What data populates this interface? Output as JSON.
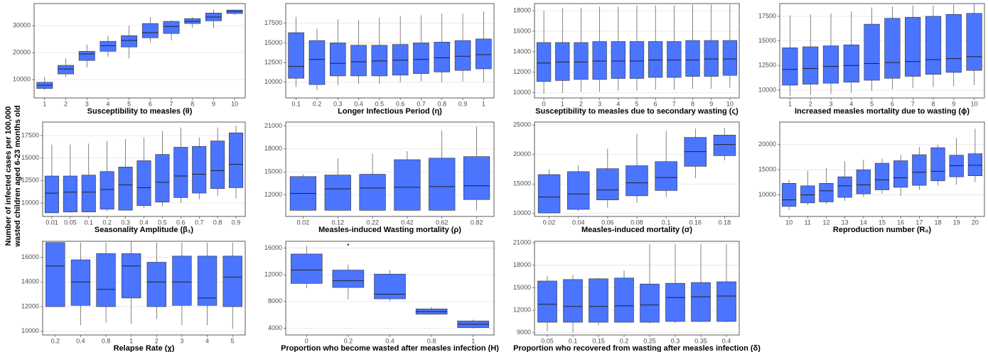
{
  "ylabel": [
    "Number of infected cases per 100,000",
    "wasted children aged 6-23 months old"
  ],
  "chart_data": [
    {
      "type": "box",
      "xlabel": "Susceptibility to measles (θ)",
      "color": "#4b74ff",
      "grid": true,
      "categories": [
        "1",
        "2",
        "3",
        "4",
        "5",
        "6",
        "7",
        "8",
        "9",
        "10"
      ],
      "whislo": [
        6000,
        11000,
        14500,
        18400,
        17900,
        23700,
        24500,
        29200,
        29000,
        34000
      ],
      "q1": [
        6700,
        12100,
        17100,
        20500,
        22100,
        25500,
        27100,
        30800,
        31800,
        34500
      ],
      "median": [
        7900,
        13950,
        19500,
        22600,
        24500,
        27400,
        29700,
        31600,
        33200,
        35300
      ],
      "q3": [
        9000,
        15300,
        20500,
        24200,
        26300,
        30800,
        31600,
        32600,
        34700,
        35800
      ],
      "whishi": [
        11000,
        17900,
        23000,
        26300,
        30000,
        33200,
        32000,
        33200,
        36000,
        36000
      ],
      "ylim": [
        3200,
        38200
      ],
      "yticks": [
        10000,
        20000,
        30000
      ]
    },
    {
      "type": "box",
      "xlabel": "Longer Infectious Period (η)",
      "color": "#4b74ff",
      "grid": true,
      "categories": [
        "0.1",
        "0.2",
        "0.3",
        "0.4",
        "0.5",
        "0.6",
        "0.7",
        "0.8",
        "0.9",
        "1"
      ],
      "whislo": [
        9400,
        9000,
        9600,
        9800,
        9800,
        10000,
        10100,
        10000,
        10100,
        10000
      ],
      "q1": [
        10500,
        9700,
        10800,
        10800,
        10800,
        10900,
        11100,
        11300,
        11500,
        11700
      ],
      "median": [
        12000,
        12900,
        12400,
        12600,
        12700,
        12800,
        12900,
        13100,
        13300,
        13500
      ],
      "q3": [
        16300,
        15300,
        15000,
        14700,
        14700,
        14800,
        15000,
        15100,
        15300,
        15500
      ],
      "whishi": [
        18300,
        16800,
        18000,
        17900,
        18200,
        18400,
        18500,
        18700,
        18700,
        19000
      ],
      "ylim": [
        8000,
        20000
      ],
      "yticks": [
        10000,
        12500,
        15000,
        17500
      ]
    },
    {
      "type": "box",
      "xlabel": "Susceptibility to measles due to secondary wasting (ς)",
      "color": "#4b74ff",
      "grid": true,
      "categories": [
        "0",
        "1",
        "2",
        "3",
        "4",
        "5",
        "6",
        "7",
        "8",
        "9",
        "10"
      ],
      "whislo": [
        9900,
        10000,
        10100,
        10100,
        10200,
        10200,
        10300,
        10300,
        10400,
        10400,
        10500
      ],
      "q1": [
        11100,
        11200,
        11300,
        11300,
        11400,
        11400,
        11500,
        11500,
        11600,
        11600,
        11700
      ],
      "median": [
        12900,
        13000,
        13000,
        13100,
        13100,
        13100,
        13200,
        13200,
        13200,
        13300,
        13300
      ],
      "q3": [
        14900,
        14900,
        14900,
        15000,
        15000,
        15000,
        15000,
        15000,
        15100,
        15100,
        15100
      ],
      "whishi": [
        18000,
        18300,
        18300,
        18400,
        18400,
        18500,
        18500,
        18500,
        18600,
        18600,
        18600
      ],
      "ylim": [
        9500,
        18700
      ],
      "yticks": [
        10000,
        12000,
        14000,
        16000,
        18000
      ]
    },
    {
      "type": "box",
      "xlabel": "Increased measles mortality due to wasting (ϕ)",
      "color": "#4b74ff",
      "grid": true,
      "categories": [
        "1",
        "2",
        "3",
        "4",
        "5",
        "6",
        "7",
        "8",
        "9",
        "10"
      ],
      "whislo": [
        9400,
        9500,
        9600,
        9700,
        9900,
        10100,
        10200,
        10300,
        10400,
        10500
      ],
      "q1": [
        10500,
        10600,
        10700,
        10800,
        11000,
        11200,
        11400,
        11600,
        11800,
        12000
      ],
      "median": [
        12100,
        12200,
        12400,
        12500,
        12700,
        12800,
        12900,
        13100,
        13200,
        13400
      ],
      "q3": [
        14300,
        14400,
        14500,
        14600,
        16700,
        17300,
        17400,
        17500,
        17700,
        17800
      ],
      "whishi": [
        17600,
        17700,
        17800,
        18000,
        18400,
        18500,
        18600,
        18600,
        18700,
        18800
      ],
      "ylim": [
        9200,
        18800
      ],
      "yticks": [
        10000,
        12500,
        15000,
        17500
      ]
    },
    {
      "type": "box",
      "xlabel": "Seasonality Amplitude (β₁)",
      "color": "#4b74ff",
      "grid": true,
      "categories": [
        "0.01",
        "0.05",
        "0.1",
        "0.2",
        "0.3",
        "0.4",
        "0.5",
        "0.6",
        "0.7",
        "0.8",
        "0.9"
      ],
      "whislo": [
        8900,
        8900,
        9000,
        9100,
        9200,
        9400,
        9600,
        10000,
        10400,
        10800,
        10500
      ],
      "q1": [
        8900,
        9000,
        9000,
        9300,
        9200,
        9700,
        10100,
        10600,
        11100,
        11600,
        11700
      ],
      "median": [
        11100,
        11200,
        11200,
        11500,
        12000,
        11700,
        12300,
        13000,
        13200,
        13600,
        14300
      ],
      "q3": [
        13000,
        13000,
        13100,
        13500,
        14000,
        14700,
        15400,
        16200,
        16300,
        16900,
        17800
      ],
      "whishi": [
        16500,
        16500,
        16600,
        16900,
        17100,
        17300,
        18000,
        18400,
        17300,
        18400,
        18600
      ],
      "ylim": [
        8500,
        19000
      ],
      "yticks": [
        10000,
        12500,
        15000,
        17500
      ]
    },
    {
      "type": "box",
      "xlabel": "Measles-induced Wasting mortality (ρ)",
      "color": "#4b74ff",
      "grid": true,
      "categories": [
        "0.02",
        "0.12",
        "0.22",
        "0.42",
        "0.62",
        "0.82"
      ],
      "whislo": [
        10000,
        10000,
        10000,
        10000,
        10000,
        10000
      ],
      "q1": [
        10000,
        10000,
        10000,
        10000,
        10000,
        11400
      ],
      "median": [
        12200,
        12800,
        12900,
        13000,
        13100,
        13200
      ],
      "q3": [
        14400,
        14600,
        14700,
        16600,
        16800,
        17000
      ],
      "whishi": [
        14700,
        16800,
        17400,
        17700,
        20400,
        20900
      ],
      "ylim": [
        9200,
        21500
      ],
      "yticks": [
        12000,
        15000,
        18000,
        21000
      ]
    },
    {
      "type": "box",
      "xlabel": "Measles-induced mortality (σ)",
      "color": "#4b74ff",
      "grid": true,
      "categories": [
        "0.02",
        "0.04",
        "0.06",
        "0.08",
        "0.1",
        "0.16",
        "0.18"
      ],
      "whislo": [
        10000,
        10400,
        11000,
        11800,
        12800,
        16000,
        19000
      ],
      "q1": [
        10100,
        10700,
        12300,
        13000,
        13900,
        18000,
        19800
      ],
      "median": [
        12800,
        13300,
        14000,
        15200,
        16100,
        20500,
        21700
      ],
      "q3": [
        16600,
        17100,
        17600,
        18100,
        18800,
        22900,
        23300
      ],
      "whishi": [
        17500,
        18200,
        21000,
        23500,
        24000,
        24400,
        24500
      ],
      "ylim": [
        9500,
        25500
      ],
      "yticks": [
        10000,
        15000,
        20000,
        25000
      ]
    },
    {
      "type": "box",
      "xlabel": "Reproduction number (R₀)",
      "color": "#4b74ff",
      "grid": true,
      "categories": [
        "10",
        "11",
        "12",
        "13",
        "14",
        "15",
        "16",
        "17",
        "18",
        "19",
        "20"
      ],
      "whislo": [
        7000,
        8000,
        8200,
        8800,
        9600,
        10200,
        9800,
        11000,
        11900,
        12000,
        12500
      ],
      "q1": [
        7700,
        8400,
        8600,
        9500,
        10200,
        11000,
        11500,
        11900,
        12800,
        13600,
        13800
      ],
      "median": [
        9000,
        10000,
        10800,
        11800,
        12000,
        13000,
        13400,
        14500,
        14700,
        15800,
        15900
      ],
      "q3": [
        12300,
        11800,
        12300,
        13600,
        15000,
        16300,
        16800,
        18000,
        19400,
        17900,
        18200
      ],
      "whishi": [
        13000,
        14800,
        15300,
        16700,
        17000,
        17200,
        18000,
        19500,
        20000,
        21300,
        23200
      ],
      "ylim": [
        5700,
        24500
      ],
      "yticks": [
        10000,
        15000,
        20000
      ]
    },
    {
      "type": "box",
      "xlabel": "Relapse Rate (χ)",
      "color": "#4b74ff",
      "grid": true,
      "categories": [
        "0.2",
        "0.4",
        "0.8",
        "1",
        "2",
        "3",
        "4",
        "5"
      ],
      "whislo": [
        12000,
        10500,
        10700,
        10600,
        11000,
        10500,
        10500,
        10200
      ],
      "q1": [
        12000,
        12100,
        12000,
        12700,
        12000,
        12100,
        12100,
        12000
      ],
      "median": [
        15300,
        14000,
        13400,
        15300,
        14000,
        14000,
        12700,
        14400
      ],
      "q3": [
        17200,
        15800,
        16300,
        16300,
        15600,
        16100,
        16100,
        16100
      ],
      "whishi": [
        17200,
        17200,
        17200,
        17300,
        17200,
        17200,
        17200,
        17200
      ],
      "ylim": [
        9700,
        17300
      ],
      "yticks": [
        10000,
        12000,
        14000,
        16000
      ]
    },
    {
      "type": "box",
      "xlabel": "Proportion who become wasted after measles infection (H)",
      "color": "#4b74ff",
      "grid": true,
      "categories": [
        "0",
        "0.2",
        "0.4",
        "0.8",
        "1"
      ],
      "whislo": [
        10000,
        8300,
        8000,
        6000,
        4000
      ],
      "q1": [
        10700,
        10100,
        8400,
        6100,
        4100
      ],
      "median": [
        12700,
        11100,
        9100,
        6500,
        4600
      ],
      "q3": [
        15100,
        12700,
        12100,
        6900,
        5100
      ],
      "whishi": [
        16300,
        13500,
        12700,
        7200,
        5300
      ],
      "outliers": [
        [],
        [
          16500
        ],
        [],
        [],
        []
      ],
      "ylim": [
        3000,
        17000
      ],
      "yticks": [
        4000,
        8000,
        12000,
        16000
      ]
    },
    {
      "type": "box",
      "xlabel": "Proportion who recovered from wasting after measles infection (δ)",
      "color": "#4b74ff",
      "grid": true,
      "categories": [
        "0.05",
        "0.1",
        "0.15",
        "0.2",
        "0.25",
        "0.3",
        "0.35",
        "0.4"
      ],
      "whislo": [
        9200,
        9000,
        10000,
        10300,
        10200,
        10300,
        10400,
        10400
      ],
      "q1": [
        10400,
        10400,
        10400,
        10400,
        10400,
        10500,
        10500,
        10500
      ],
      "median": [
        12800,
        12500,
        12500,
        12600,
        12700,
        13700,
        13800,
        13900
      ],
      "q3": [
        15900,
        16100,
        16200,
        16300,
        15500,
        15600,
        15700,
        15800
      ],
      "whishi": [
        16600,
        16700,
        16300,
        17300,
        20800,
        20800,
        20800,
        20800
      ],
      "ylim": [
        8700,
        21200
      ],
      "yticks": [
        9000,
        12000,
        15000,
        18000,
        21000
      ]
    }
  ]
}
